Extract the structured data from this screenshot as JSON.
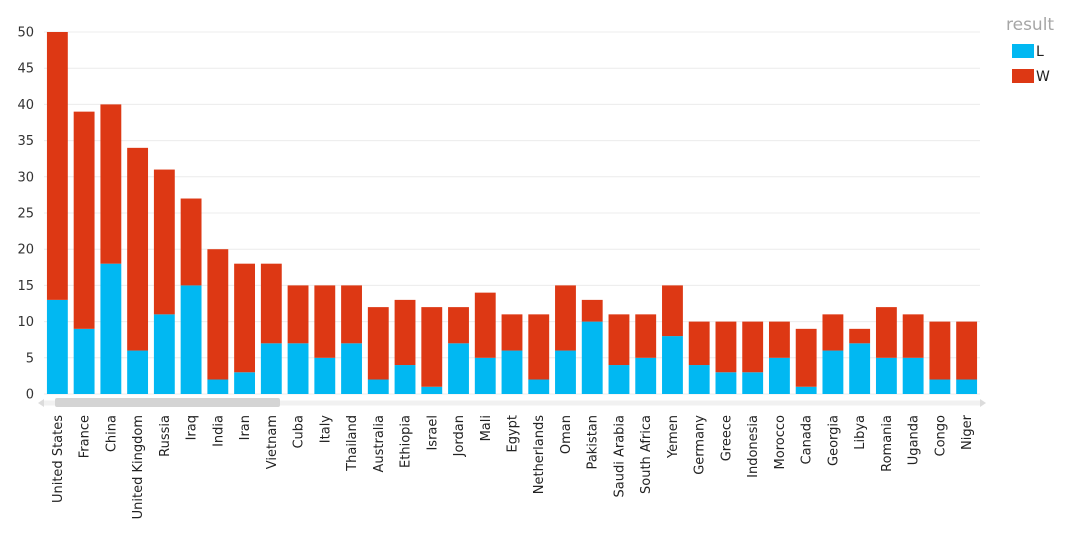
{
  "chart_data": {
    "type": "bar",
    "stacked": true,
    "title": "",
    "xlabel": "",
    "ylabel": "",
    "ylim": [
      0,
      50
    ],
    "yticks": [
      0,
      5,
      10,
      15,
      20,
      25,
      30,
      35,
      40,
      45,
      50
    ],
    "grid": true,
    "legend": {
      "title": "result",
      "position": "top-right"
    },
    "categories": [
      "United States",
      "France",
      "China",
      "United Kingdom",
      "Russia",
      "Iraq",
      "India",
      "Iran",
      "Vietnam",
      "Cuba",
      "Italy",
      "Thailand",
      "Australia",
      "Ethiopia",
      "Israel",
      "Jordan",
      "Mali",
      "Egypt",
      "Netherlands",
      "Oman",
      "Pakistan",
      "Saudi Arabia",
      "South Africa",
      "Yemen",
      "Germany",
      "Greece",
      "Indonesia",
      "Morocco",
      "Canada",
      "Georgia",
      "Libya",
      "Romania",
      "Uganda",
      "Congo",
      "Niger"
    ],
    "series": [
      {
        "name": "L",
        "color": "#01b8f2",
        "values": [
          13,
          9,
          18,
          6,
          11,
          15,
          2,
          3,
          7,
          7,
          5,
          7,
          2,
          4,
          1,
          7,
          5,
          6,
          2,
          6,
          10,
          4,
          5,
          8,
          4,
          3,
          3,
          5,
          1,
          6,
          7,
          5,
          5,
          2,
          2
        ]
      },
      {
        "name": "W",
        "color": "#dd3814",
        "values": [
          37,
          30,
          22,
          28,
          20,
          12,
          18,
          15,
          11,
          8,
          10,
          8,
          10,
          9,
          11,
          5,
          9,
          5,
          9,
          9,
          3,
          7,
          6,
          7,
          6,
          7,
          7,
          5,
          8,
          5,
          2,
          7,
          6,
          8,
          8
        ]
      }
    ]
  }
}
